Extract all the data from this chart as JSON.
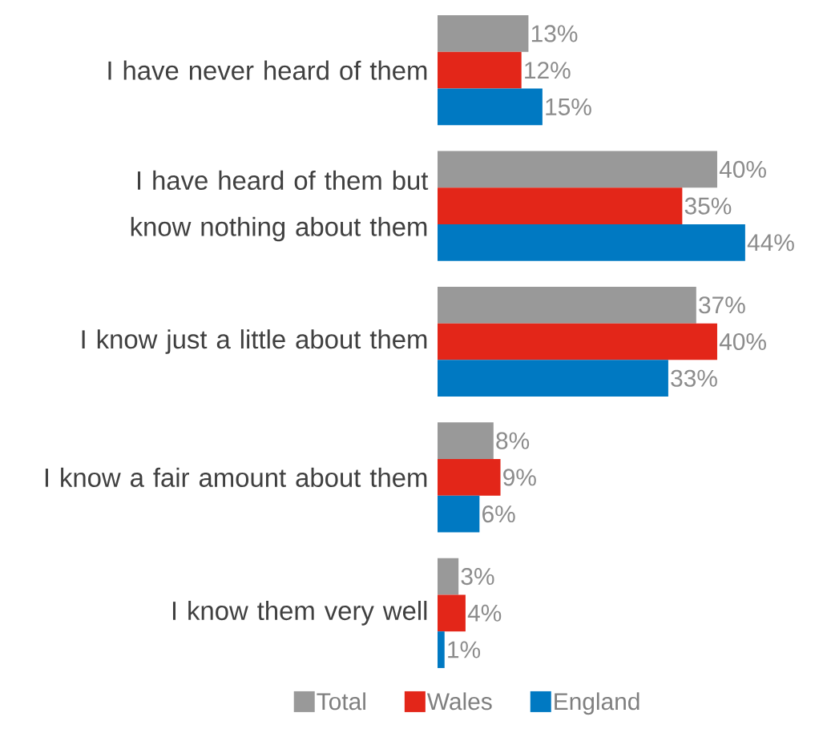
{
  "chart_data": {
    "type": "bar",
    "orientation": "horizontal",
    "legend": "bottom",
    "categories": [
      "I have never heard of them",
      "I have heard of them but know nothing about them",
      "I know just a little about them",
      "I know a fair amount about them",
      "I know them very well"
    ],
    "series": [
      {
        "name": "Total",
        "color": "#999999",
        "values": [
          13,
          40,
          37,
          8,
          3
        ],
        "value_labels": [
          "13%",
          "40%",
          "37%",
          "8%",
          "3%"
        ]
      },
      {
        "name": "Wales",
        "color": "#e32619",
        "values": [
          12,
          35,
          40,
          9,
          4
        ],
        "value_labels": [
          "12%",
          "35%",
          "40%",
          "9%",
          "4%"
        ]
      },
      {
        "name": "England",
        "color": "#0079c2",
        "values": [
          15,
          44,
          33,
          6,
          1
        ],
        "value_labels": [
          "15%",
          "44%",
          "33%",
          "6%",
          "1%"
        ]
      }
    ]
  }
}
